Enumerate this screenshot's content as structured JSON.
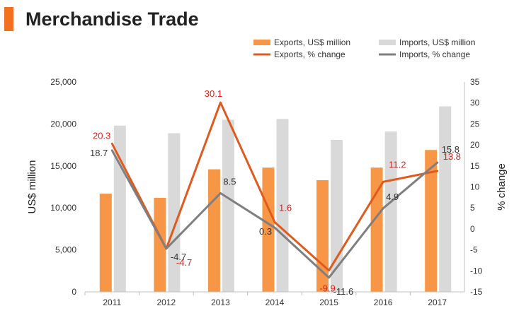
{
  "header": {
    "title": "Merchandise Trade",
    "accent_color": "#f37021"
  },
  "chart_data": {
    "type": "bar",
    "categories": [
      "2011",
      "2012",
      "2013",
      "2014",
      "2015",
      "2016",
      "2017"
    ],
    "series": [
      {
        "name": "Exports, US$ million",
        "kind": "bar",
        "axis": "left",
        "color": "#f79646",
        "values": [
          11700,
          11200,
          14600,
          14800,
          13300,
          14800,
          16900
        ]
      },
      {
        "name": "Imports, US$ million",
        "kind": "bar",
        "axis": "left",
        "color": "#d9d9d9",
        "values": [
          19800,
          18900,
          20500,
          20600,
          18100,
          19100,
          22100
        ]
      },
      {
        "name": "Exports, % change",
        "kind": "line",
        "axis": "right",
        "color": "#e05a1e",
        "label_color": "#e0201a",
        "values": [
          20.3,
          -4.7,
          30.1,
          1.6,
          -9.9,
          11.2,
          13.8
        ],
        "labels": [
          "20.3",
          "-4.7",
          "30.1",
          "1.6",
          "-9.9",
          "11.2",
          "13.8"
        ]
      },
      {
        "name": "Imports, % change",
        "kind": "line",
        "axis": "right",
        "color": "#7f7f7f",
        "label_color": "#333333",
        "values": [
          18.7,
          -4.7,
          8.5,
          0.3,
          -11.6,
          4.9,
          15.8
        ],
        "labels": [
          "18.7",
          "-4.7",
          "8.5",
          "0.3",
          "-11.6",
          "4.9",
          "15.8"
        ]
      }
    ],
    "left_axis": {
      "label": "US$ million",
      "range": [
        0,
        25000
      ],
      "ticks": [
        0,
        5000,
        10000,
        15000,
        20000,
        25000
      ],
      "tick_labels": [
        "0",
        "5,000",
        "10,000",
        "15,000",
        "20,000",
        "25,000"
      ]
    },
    "right_axis": {
      "label": "% change",
      "range": [
        -15,
        35
      ],
      "ticks": [
        -15,
        -10,
        -5,
        0,
        5,
        10,
        15,
        20,
        25,
        30,
        35
      ],
      "tick_labels": [
        "-15",
        "-10",
        "-5",
        "0",
        "5",
        "10",
        "15",
        "20",
        "25",
        "30",
        "35"
      ]
    },
    "legend_position": "top-right",
    "grid": false
  }
}
